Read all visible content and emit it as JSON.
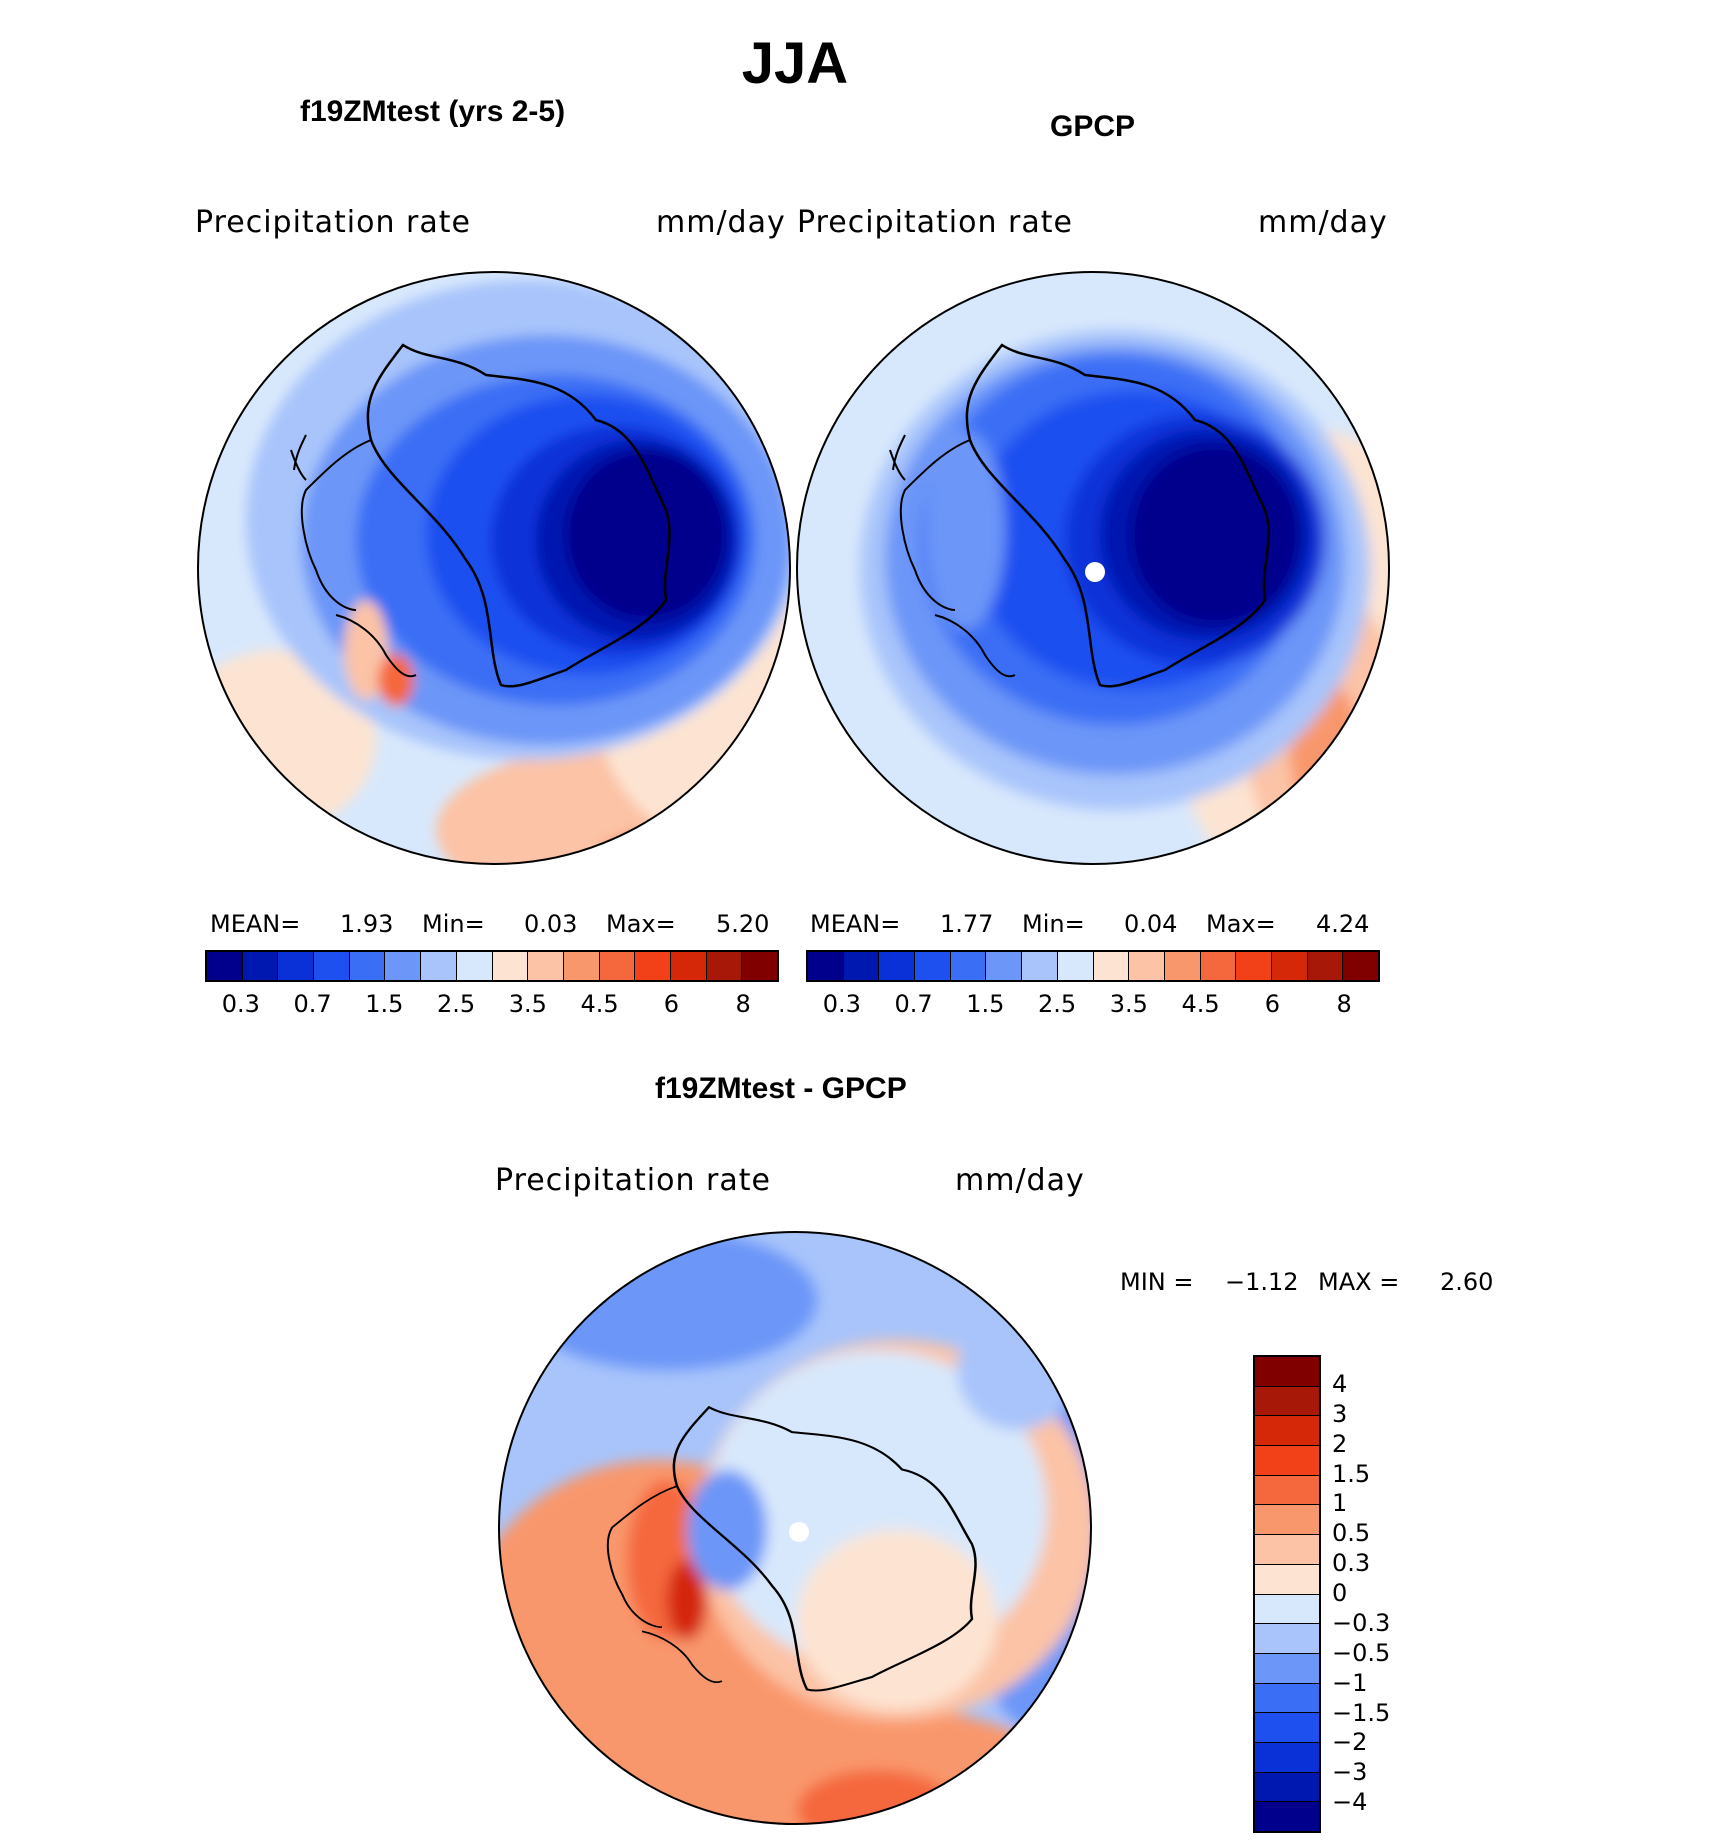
{
  "title": "JJA",
  "panels": {
    "left": {
      "title": "f19ZMtest (yrs 2-5)",
      "var_label": "Precipitation  rate",
      "units": "mm/day",
      "mean_label": "MEAN=",
      "mean_value": "1.93",
      "min_label": "Min=",
      "min_value": "0.03",
      "max_label": "Max=",
      "max_value": "5.20"
    },
    "right": {
      "title": "GPCP",
      "var_label": "Precipitation  rate",
      "units": "mm/day",
      "mean_label": "MEAN=",
      "mean_value": "1.77",
      "min_label": "Min=",
      "min_value": "0.04",
      "max_label": "Max=",
      "max_value": "4.24"
    },
    "diff": {
      "title": "f19ZMtest - GPCP",
      "var_label": "Precipitation  rate",
      "units": "mm/day",
      "min_label": "MIN =",
      "min_value": "−1.12",
      "max_label": "MAX =",
      "max_value": "2.60"
    }
  },
  "colorbar_abs": {
    "colors": [
      "#00008c",
      "#0018b0",
      "#0a30d8",
      "#1e50f0",
      "#3a6ef5",
      "#6c96f8",
      "#a8c4fb",
      "#d8e8fc",
      "#fde4d2",
      "#fcc3a6",
      "#f9976c",
      "#f5683e",
      "#f24018",
      "#d42808",
      "#a81808",
      "#800000"
    ],
    "tick_labels": [
      "0.3",
      "0.7",
      "1.5",
      "2.5",
      "3.5",
      "4.5",
      "6",
      "8"
    ]
  },
  "colorbar_diff": {
    "colors": [
      "#800000",
      "#a81808",
      "#d42808",
      "#f24018",
      "#f5683e",
      "#f9976c",
      "#fcc3a6",
      "#fde4d2",
      "#d8e8fc",
      "#a8c4fb",
      "#6c96f8",
      "#3a6ef5",
      "#1e50f0",
      "#0a30d8",
      "#0018b0",
      "#00008c"
    ],
    "tick_labels": [
      "4",
      "3",
      "2",
      "1.5",
      "1",
      "0.5",
      "0.3",
      "0",
      "−0.3",
      "−0.5",
      "−1",
      "−1.5",
      "−2",
      "−3",
      "−4"
    ]
  }
}
